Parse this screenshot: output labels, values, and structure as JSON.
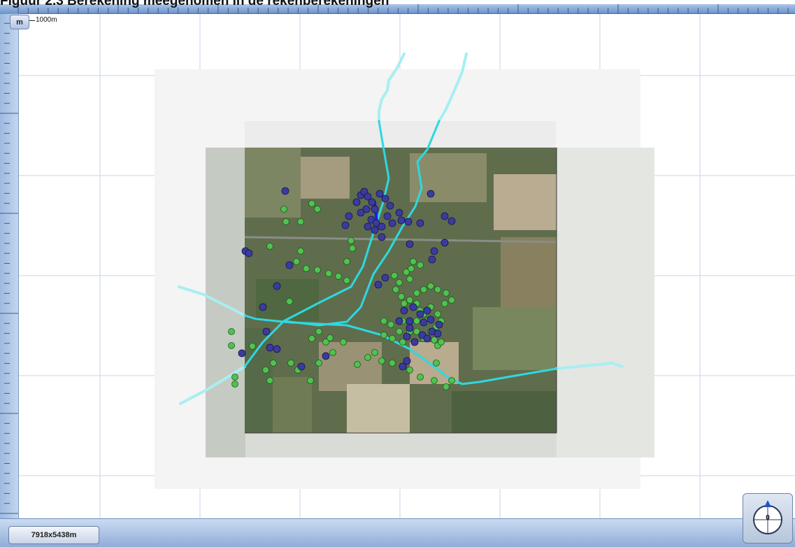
{
  "header": {
    "title": "Figuur 2.3 Berekening meegenomen in de rekenberekeningen"
  },
  "map": {
    "unit_button_label": "m",
    "scale_label": "1000m",
    "dimensions_label": "7918x5438m",
    "compass_heading": "0",
    "colors": {
      "route": "#2ed8e0",
      "route_faded": "#a9eef2",
      "receptor_green": "#4fc24f",
      "receptor_blue": "#3b3b9e",
      "ruler": "#8fadd8",
      "grid": "#c9d3ea"
    }
  }
}
